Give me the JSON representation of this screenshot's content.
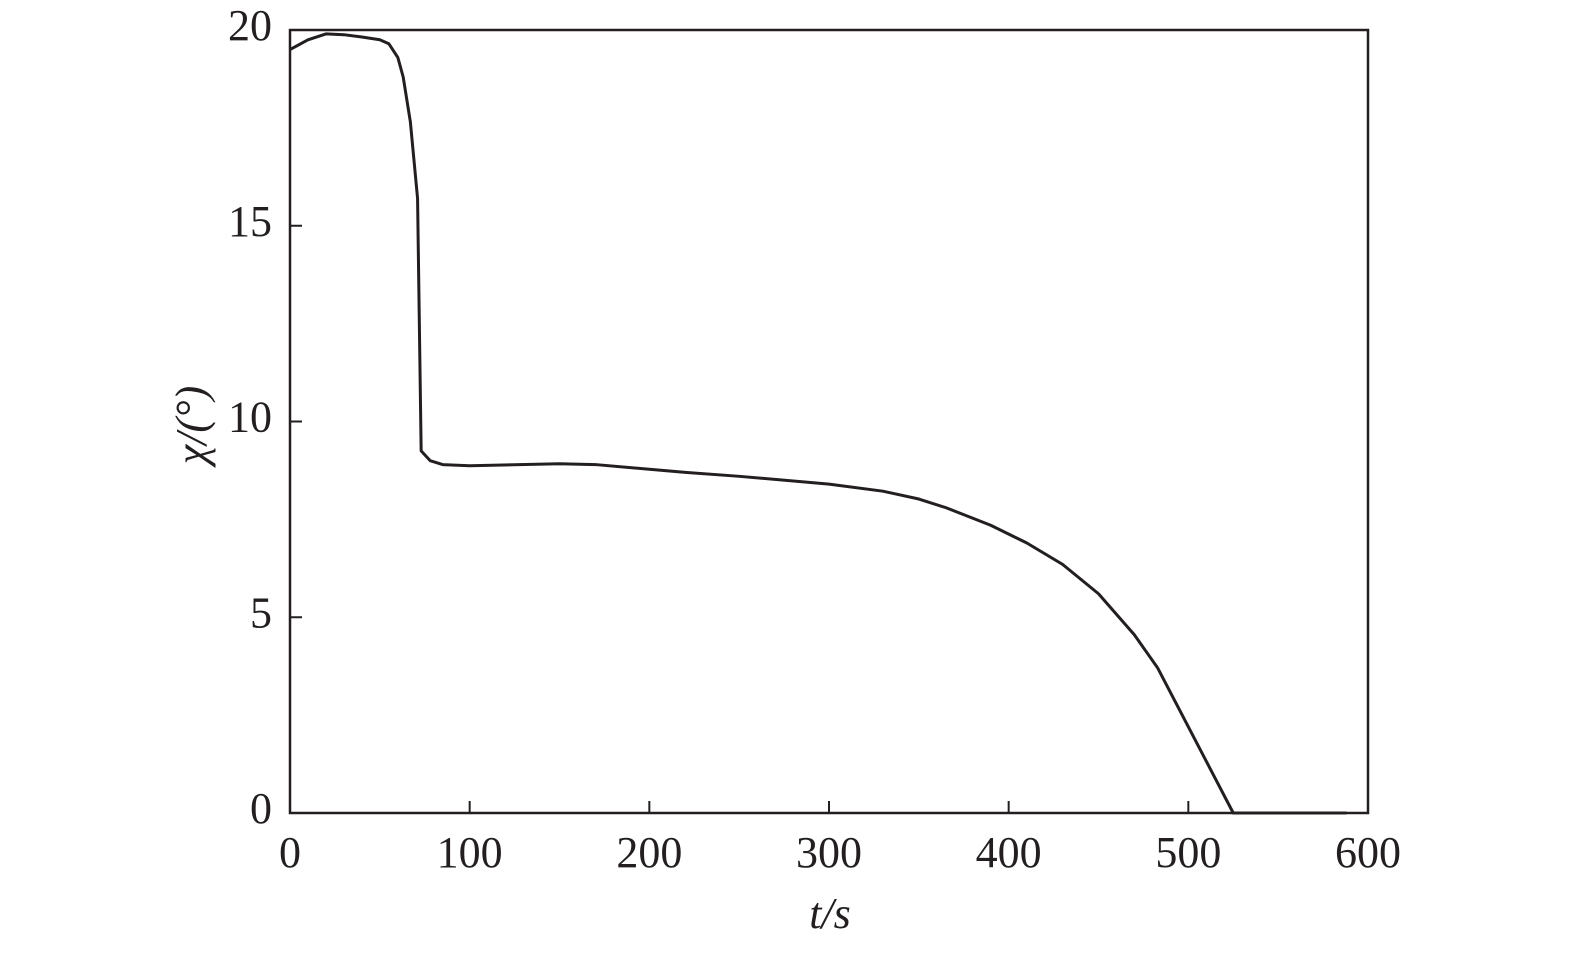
{
  "chart_data": {
    "type": "line",
    "x_label": "t/s",
    "y_label": "χ/(°)",
    "x": [
      0,
      10,
      20,
      30,
      40,
      50,
      55,
      60,
      63,
      67,
      71,
      73,
      78,
      85,
      100,
      150,
      170,
      200,
      220,
      250,
      300,
      330,
      350,
      365,
      390,
      410,
      430,
      450,
      470,
      483,
      525,
      588
    ],
    "series": [
      {
        "name": "χ",
        "color": "#231f20",
        "values": [
          19.5,
          19.75,
          19.9,
          19.88,
          19.82,
          19.75,
          19.65,
          19.3,
          18.8,
          17.65,
          15.7,
          9.25,
          9.0,
          8.9,
          8.87,
          8.92,
          8.9,
          8.78,
          8.7,
          8.6,
          8.4,
          8.22,
          8.02,
          7.8,
          7.35,
          6.9,
          6.35,
          5.6,
          4.55,
          3.7,
          0,
          0
        ]
      }
    ],
    "xlim": [
      0,
      600
    ],
    "xticks": [
      0,
      100,
      200,
      300,
      400,
      500,
      600
    ],
    "ylim": [
      0,
      20
    ],
    "yticks": [
      0,
      5,
      10,
      15,
      20
    ]
  }
}
